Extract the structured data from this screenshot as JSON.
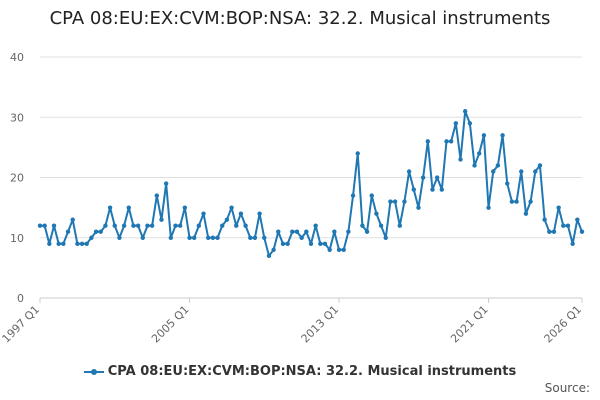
{
  "chart_data": {
    "type": "line",
    "title": "CPA 08:EU:EX:CVM:BOP:NSA: 32.2. Musical instruments",
    "xlabel": "",
    "ylabel": "",
    "x_tick_labels": [
      "1997 Q1",
      "2005 Q1",
      "2013 Q1",
      "2021 Q1",
      "2026 Q1"
    ],
    "y_ticks": [
      0,
      10,
      20,
      30,
      40
    ],
    "ylim": [
      0,
      42
    ],
    "x_range": [
      "1997 Q1",
      "2026 Q1"
    ],
    "grid": "horizontal",
    "legend_position": "bottom",
    "color": "#1f77b4",
    "series": [
      {
        "name": "CPA 08:EU:EX:CVM:BOP:NSA: 32.2. Musical instruments",
        "x": [
          "1997 Q1",
          "1997 Q2",
          "1997 Q3",
          "1997 Q4",
          "1998 Q1",
          "1998 Q2",
          "1998 Q3",
          "1998 Q4",
          "1999 Q1",
          "1999 Q2",
          "1999 Q3",
          "1999 Q4",
          "2000 Q1",
          "2000 Q2",
          "2000 Q3",
          "2000 Q4",
          "2001 Q1",
          "2001 Q2",
          "2001 Q3",
          "2001 Q4",
          "2002 Q1",
          "2002 Q2",
          "2002 Q3",
          "2002 Q4",
          "2003 Q1",
          "2003 Q2",
          "2003 Q3",
          "2003 Q4",
          "2004 Q1",
          "2004 Q2",
          "2004 Q3",
          "2004 Q4",
          "2005 Q1",
          "2005 Q2",
          "2005 Q3",
          "2005 Q4",
          "2006 Q1",
          "2006 Q2",
          "2006 Q3",
          "2006 Q4",
          "2007 Q1",
          "2007 Q2",
          "2007 Q3",
          "2007 Q4",
          "2008 Q1",
          "2008 Q2",
          "2008 Q3",
          "2008 Q4",
          "2009 Q1",
          "2009 Q2",
          "2009 Q3",
          "2009 Q4",
          "2010 Q1",
          "2010 Q2",
          "2010 Q3",
          "2010 Q4",
          "2011 Q1",
          "2011 Q2",
          "2011 Q3",
          "2011 Q4",
          "2012 Q1",
          "2012 Q2",
          "2012 Q3",
          "2012 Q4",
          "2013 Q1",
          "2013 Q2",
          "2013 Q3",
          "2013 Q4",
          "2014 Q1",
          "2014 Q2",
          "2014 Q3",
          "2014 Q4",
          "2015 Q1",
          "2015 Q2",
          "2015 Q3",
          "2015 Q4",
          "2016 Q1",
          "2016 Q2",
          "2016 Q3",
          "2016 Q4",
          "2017 Q1",
          "2017 Q2",
          "2017 Q3",
          "2017 Q4",
          "2018 Q1",
          "2018 Q2",
          "2018 Q3",
          "2018 Q4",
          "2019 Q1",
          "2019 Q2",
          "2019 Q3",
          "2019 Q4",
          "2020 Q1",
          "2020 Q2",
          "2020 Q3",
          "2020 Q4",
          "2021 Q1",
          "2021 Q2",
          "2021 Q3",
          "2021 Q4",
          "2022 Q1",
          "2022 Q2",
          "2022 Q3",
          "2022 Q4",
          "2023 Q1",
          "2023 Q2",
          "2023 Q3",
          "2023 Q4",
          "2024 Q1",
          "2024 Q2",
          "2024 Q3",
          "2024 Q4",
          "2025 Q1",
          "2025 Q2",
          "2025 Q3",
          "2025 Q4",
          "2026 Q1"
        ],
        "values": [
          12,
          12,
          9,
          12,
          9,
          9,
          11,
          13,
          9,
          9,
          9,
          10,
          11,
          11,
          12,
          15,
          12,
          10,
          12,
          15,
          12,
          12,
          10,
          12,
          12,
          17,
          13,
          19,
          10,
          12,
          12,
          15,
          10,
          10,
          12,
          14,
          10,
          10,
          10,
          12,
          13,
          15,
          12,
          14,
          12,
          10,
          10,
          14,
          10,
          7,
          8,
          11,
          9,
          9,
          11,
          11,
          10,
          11,
          9,
          12,
          9,
          9,
          8,
          11,
          8,
          8,
          11,
          17,
          24,
          12,
          11,
          17,
          14,
          12,
          10,
          16,
          16,
          12,
          16,
          21,
          18,
          15,
          20,
          26,
          18,
          20,
          18,
          26,
          26,
          29,
          23,
          31,
          29,
          22,
          24,
          27,
          15,
          21,
          22,
          27,
          19,
          16,
          16,
          21,
          14,
          16,
          21,
          22,
          13,
          11,
          11,
          15,
          12,
          12,
          9,
          13,
          11
        ]
      }
    ]
  },
  "legend": {
    "label": "CPA 08:EU:EX:CVM:BOP:NSA: 32.2. Musical instruments"
  },
  "source": {
    "label": "Source:"
  }
}
